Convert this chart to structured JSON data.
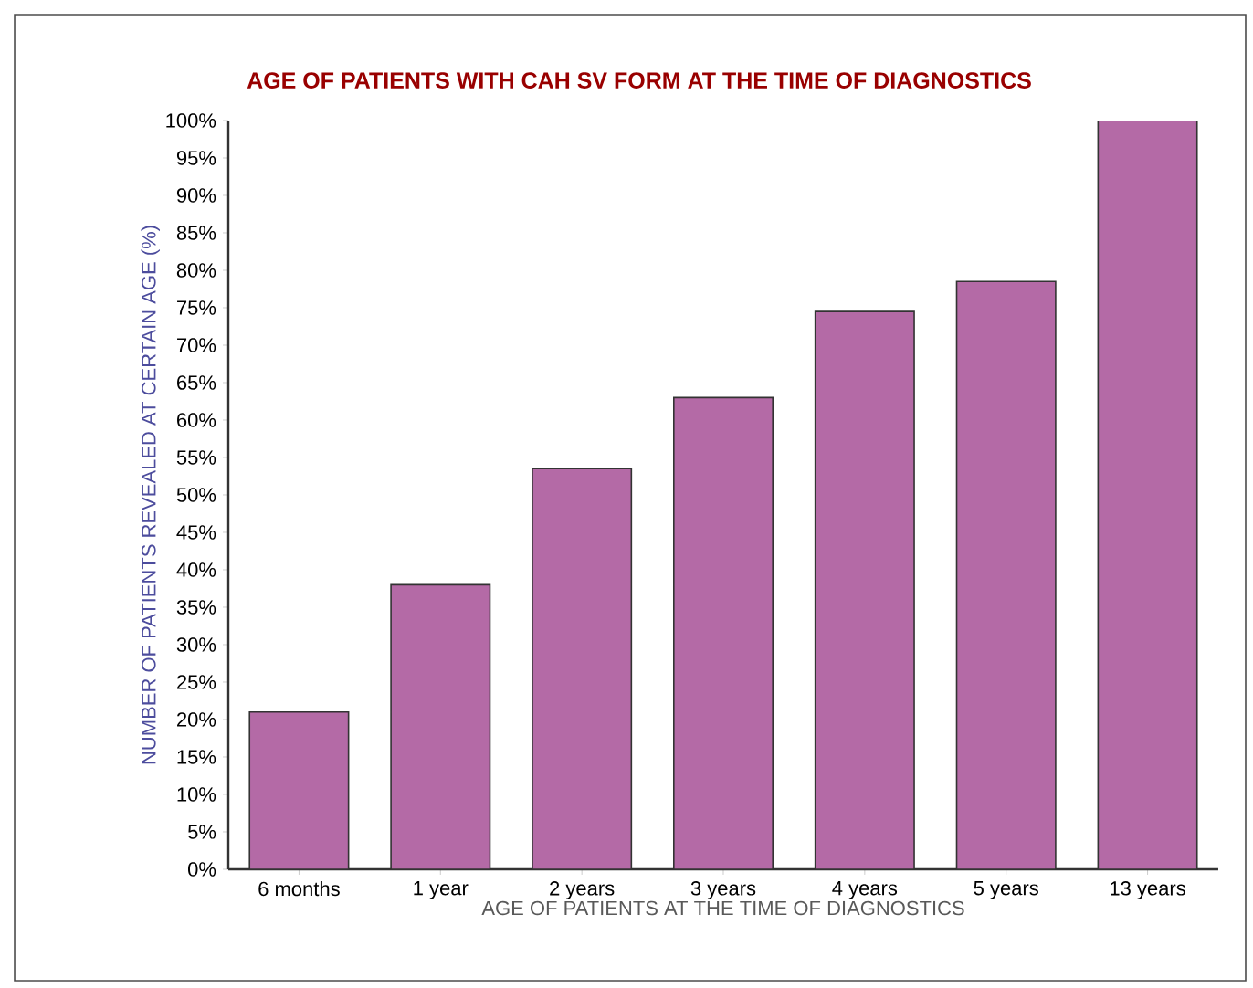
{
  "chart_data": {
    "type": "bar",
    "title": "AGE OF PATIENTS WITH CAH SV FORM AT THE TIME OF DIAGNOSTICS",
    "xlabel": "AGE OF PATIENTS AT THE TIME OF DIAGNOSTICS",
    "ylabel": "NUMBER OF PATIENTS REVEALED AT CERTAIN AGE (%)",
    "categories": [
      "6 months",
      "1 year",
      "2 years",
      "3 years",
      "4 years",
      "5 years",
      "13 years"
    ],
    "values": [
      21,
      38,
      53.5,
      63,
      74.5,
      78.5,
      100
    ],
    "color": "#b46aa6",
    "ylim": [
      0,
      100
    ],
    "yticks": [
      {
        "value": 0,
        "label": "0%"
      },
      {
        "value": 5,
        "label": "5%"
      },
      {
        "value": 10,
        "label": "10%"
      },
      {
        "value": 15,
        "label": "15%"
      },
      {
        "value": 20,
        "label": "20%"
      },
      {
        "value": 25,
        "label": "25%"
      },
      {
        "value": 30,
        "label": "30%"
      },
      {
        "value": 35,
        "label": "35%"
      },
      {
        "value": 40,
        "label": "40%"
      },
      {
        "value": 45,
        "label": "45%"
      },
      {
        "value": 50,
        "label": "50%"
      },
      {
        "value": 55,
        "label": "55%"
      },
      {
        "value": 60,
        "label": "60%"
      },
      {
        "value": 65,
        "label": "65%"
      },
      {
        "value": 70,
        "label": "70%"
      },
      {
        "value": 75,
        "label": "75%"
      },
      {
        "value": 80,
        "label": "80%"
      },
      {
        "value": 85,
        "label": "85%"
      },
      {
        "value": 90,
        "label": "90%"
      },
      {
        "value": 95,
        "label": "95%"
      },
      {
        "value": 100,
        "label": "100%"
      }
    ],
    "grid": false
  }
}
